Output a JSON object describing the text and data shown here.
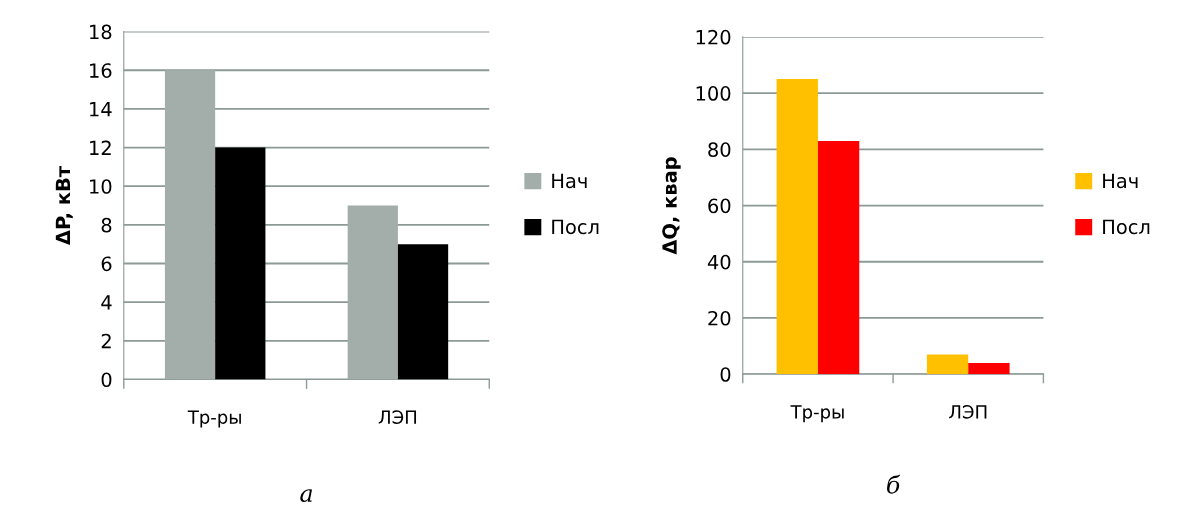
{
  "chart_data": [
    {
      "type": "bar",
      "ylabel": "ΔP, кВт",
      "categories": [
        "Тр-ры",
        "ЛЭП"
      ],
      "series": [
        {
          "name": "Нач",
          "color": "#a3aeab",
          "values": [
            16,
            9
          ]
        },
        {
          "name": "Посл",
          "color": "#000000",
          "values": [
            12,
            7
          ]
        }
      ],
      "ylim": [
        0,
        18
      ],
      "yticks": [
        0,
        2,
        4,
        6,
        8,
        10,
        12,
        14,
        16,
        18
      ],
      "grid": "y",
      "legend": "right",
      "annotations": [
        "а"
      ]
    },
    {
      "type": "bar",
      "ylabel": "ΔQ, квар",
      "categories": [
        "Тр-ры",
        "ЛЭП"
      ],
      "series": [
        {
          "name": "Нач",
          "color": "#ffc000",
          "values": [
            105,
            7
          ]
        },
        {
          "name": "Посл",
          "color": "#ff0000",
          "values": [
            83,
            4
          ]
        }
      ],
      "ylim": [
        0,
        120
      ],
      "yticks": [
        0,
        20,
        40,
        60,
        80,
        100,
        120
      ],
      "grid": "y",
      "legend": "right",
      "annotations": [
        "б"
      ]
    }
  ]
}
